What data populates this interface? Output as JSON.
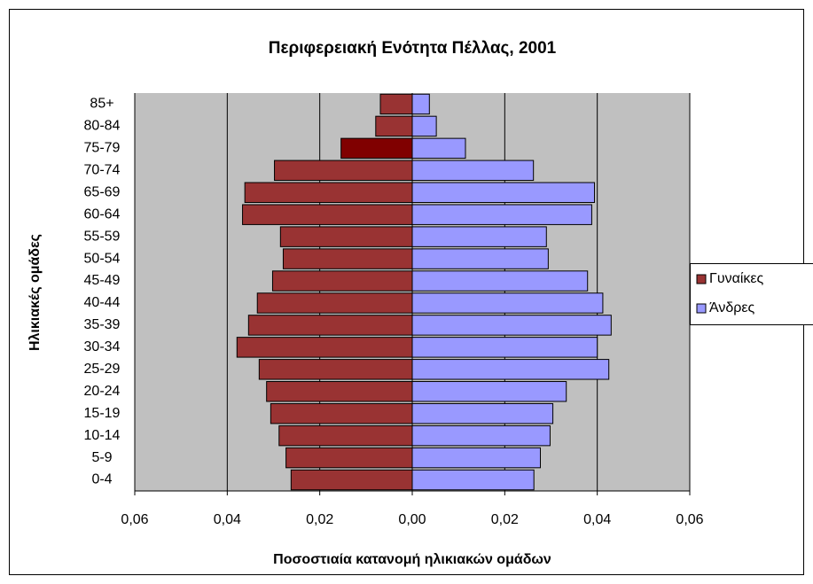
{
  "chart_data": {
    "type": "pyramid",
    "title": "Περιφερειακή Ενότητα Πέλλας, 2001",
    "x_label": "Ποσοστιαία κατανομή ηλικιακών ομάδων",
    "y_label": "Ηλικιακές ομάδες",
    "categories": [
      "0-4",
      "5-9",
      "10-14",
      "15-19",
      "20-24",
      "25-29",
      "30-34",
      "35-39",
      "40-44",
      "45-49",
      "50-54",
      "55-59",
      "60-64",
      "65-69",
      "70-74",
      "75-79",
      "80-84",
      "85+"
    ],
    "series": [
      {
        "name": "Γυναίκες",
        "color": "#993333",
        "point_colors": {
          "15": "#800000"
        },
        "values": [
          -0.0262,
          -0.0273,
          -0.0288,
          -0.0306,
          -0.0315,
          -0.0331,
          -0.0379,
          -0.0354,
          -0.0335,
          -0.0302,
          -0.0279,
          -0.0285,
          -0.0367,
          -0.0362,
          -0.0298,
          -0.0154,
          -0.0079,
          -0.0069
        ]
      },
      {
        "name": "Άνδρες",
        "color": "#9999ff",
        "values": [
          0.0263,
          0.0277,
          0.0298,
          0.0304,
          0.0333,
          0.0425,
          0.04,
          0.043,
          0.0412,
          0.0379,
          0.0294,
          0.029,
          0.0388,
          0.0394,
          0.0262,
          0.0115,
          0.0052,
          0.0037
        ]
      }
    ],
    "xlim": [
      -0.06,
      0.06
    ],
    "xticks": [
      {
        "value": -0.06,
        "label": "0,06"
      },
      {
        "value": -0.04,
        "label": "0,04"
      },
      {
        "value": -0.02,
        "label": "0,02"
      },
      {
        "value": 0,
        "label": "0,00"
      },
      {
        "value": 0.02,
        "label": "0,02"
      },
      {
        "value": 0.04,
        "label": "0,04"
      },
      {
        "value": 0.06,
        "label": "0,06"
      }
    ],
    "grid": true,
    "plot_background": "#c0c0c0",
    "legend": "right"
  }
}
